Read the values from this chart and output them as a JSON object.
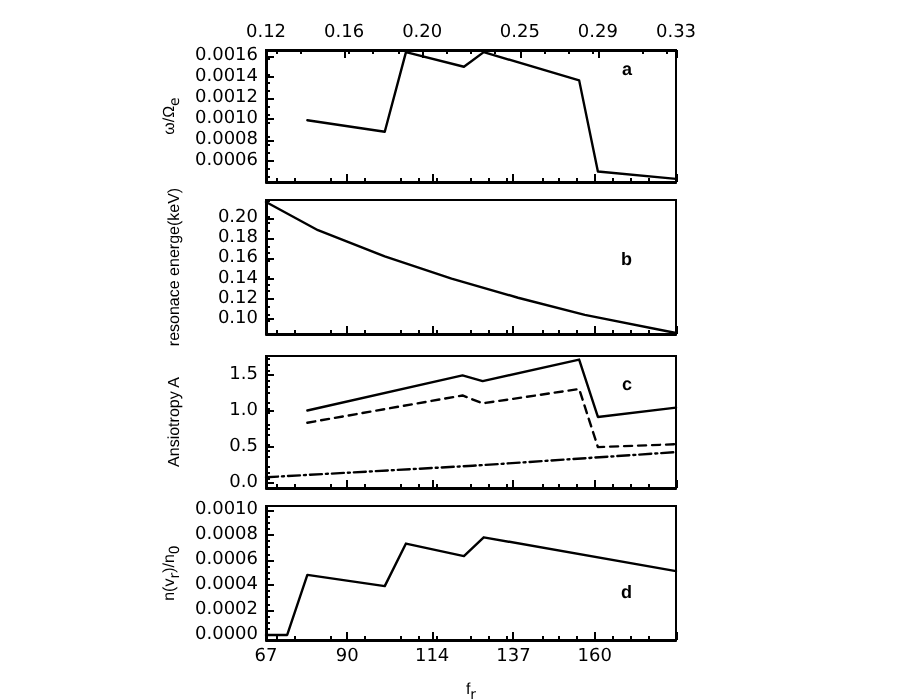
{
  "chart_data": [
    {
      "type": "line",
      "ylabel": "ω/Ω$_{e}$",
      "annotations": [
        "a"
      ],
      "tick_labels": "y",
      "x2lim": [
        0.12,
        0.33
      ],
      "x2ticks": [
        {
          "value": 0.12,
          "label": "0.12"
        },
        {
          "value": 0.16,
          "label": "0.16"
        },
        {
          "value": 0.2,
          "label": "0.20"
        },
        {
          "value": 0.25,
          "label": "0.25"
        },
        {
          "value": 0.29,
          "label": "0.29"
        },
        {
          "value": 0.33,
          "label": "0.33"
        }
      ],
      "xlim": [
        67,
        183
      ],
      "xticks": [
        67,
        90,
        114,
        137,
        160,
        183
      ],
      "ylim": [
        0.0004,
        0.00166
      ],
      "yticks": [
        {
          "value": 0.0006,
          "label": "0.0006"
        },
        {
          "value": 0.0008,
          "label": "0.0008"
        },
        {
          "value": 0.001,
          "label": "0.0010"
        },
        {
          "value": 0.0012,
          "label": "0.0012"
        },
        {
          "value": 0.0014,
          "label": "0.0014"
        },
        {
          "value": 0.0016,
          "label": "0.0016"
        }
      ],
      "grid": false,
      "marker": "none",
      "series": [
        {
          "color": "#000000",
          "line_style": "solid",
          "x": [
            78.7,
            100.6,
            106.6,
            123,
            128.6,
            155.6,
            160.9,
            183
          ],
          "values": [
            0.00099,
            0.00088,
            0.00164,
            0.0015,
            0.00164,
            0.00137,
            0.0005,
            0.00043
          ]
        }
      ]
    },
    {
      "type": "line",
      "ylabel": "resonace energe(keV)",
      "annotations": [
        "b"
      ],
      "tick_labels": "y",
      "xlim": [
        67,
        183
      ],
      "xticks": [
        67,
        90,
        114,
        137,
        160,
        183
      ],
      "ylim": [
        0.085,
        0.218
      ],
      "yticks": [
        {
          "value": 0.1,
          "label": "0.10"
        },
        {
          "value": 0.12,
          "label": "0.12"
        },
        {
          "value": 0.14,
          "label": "0.14"
        },
        {
          "value": 0.16,
          "label": "0.16"
        },
        {
          "value": 0.18,
          "label": "0.18"
        },
        {
          "value": 0.2,
          "label": "0.20"
        }
      ],
      "grid": false,
      "marker": "none",
      "series": [
        {
          "color": "#000000",
          "line_style": "solid",
          "x": [
            67,
            81.7,
            100.6,
            119.5,
            138.3,
            157.2,
            183
          ],
          "values": [
            0.216,
            0.188,
            0.162,
            0.14,
            0.121,
            0.104,
            0.086
          ]
        }
      ]
    },
    {
      "type": "line",
      "ylabel": "Ansiotropy A",
      "annotations": [
        "c"
      ],
      "tick_labels": "y",
      "xlim": [
        67,
        183
      ],
      "xticks": [
        67,
        90,
        114,
        137,
        160,
        183
      ],
      "ylim": [
        -0.07,
        1.77
      ],
      "yticks": [
        {
          "value": 0,
          "label": "0.0"
        },
        {
          "value": 0.5,
          "label": "0.5"
        },
        {
          "value": 1,
          "label": "1.0"
        },
        {
          "value": 1.5,
          "label": "1.5"
        }
      ],
      "grid": false,
      "marker": "none",
      "series": [
        {
          "color": "#000000",
          "line_style": "solid",
          "x": [
            78.7,
            122.6,
            128.3,
            155.6,
            160.9,
            183
          ],
          "values": [
            1.01,
            1.5,
            1.42,
            1.72,
            0.92,
            1.05
          ]
        },
        {
          "color": "#000000",
          "line_style": "dashed",
          "x": [
            78.7,
            122.6,
            128.3,
            155.6,
            160.9,
            183
          ],
          "values": [
            0.84,
            1.22,
            1.11,
            1.31,
            0.5,
            0.54
          ]
        },
        {
          "color": "#000000",
          "line_style": "dashdot",
          "x": [
            67,
            125.5,
            183
          ],
          "values": [
            0.08,
            0.24,
            0.43
          ]
        }
      ]
    },
    {
      "type": "line",
      "ylabel": "n(v$_{r}$)/n$_{0}$",
      "xlabel": "f$_{r}$",
      "annotations": [
        "d"
      ],
      "xlim": [
        67,
        183
      ],
      "xticks": [
        67,
        90,
        114,
        137,
        160,
        {
          "value": 183,
          "label": null
        }
      ],
      "ylim": [
        -4e-05,
        0.00103
      ],
      "yticks": [
        {
          "value": 0,
          "label": "0.0000"
        },
        {
          "value": 0.0002,
          "label": "0.0002"
        },
        {
          "value": 0.0004,
          "label": "0.0004"
        },
        {
          "value": 0.0006,
          "label": "0.0006"
        },
        {
          "value": 0.0008,
          "label": "0.0008"
        },
        {
          "value": 0.001,
          "label": "0.0010"
        }
      ],
      "grid": false,
      "marker": "none",
      "series": [
        {
          "color": "#000000",
          "line_style": "solid",
          "x": [
            67,
            73,
            78.7,
            100.6,
            106.6,
            123,
            128.6,
            183
          ],
          "values": [
            0,
            0,
            0.00048,
            0.00039,
            0.00073,
            0.00063,
            0.00078,
            0.00051
          ]
        }
      ]
    }
  ]
}
